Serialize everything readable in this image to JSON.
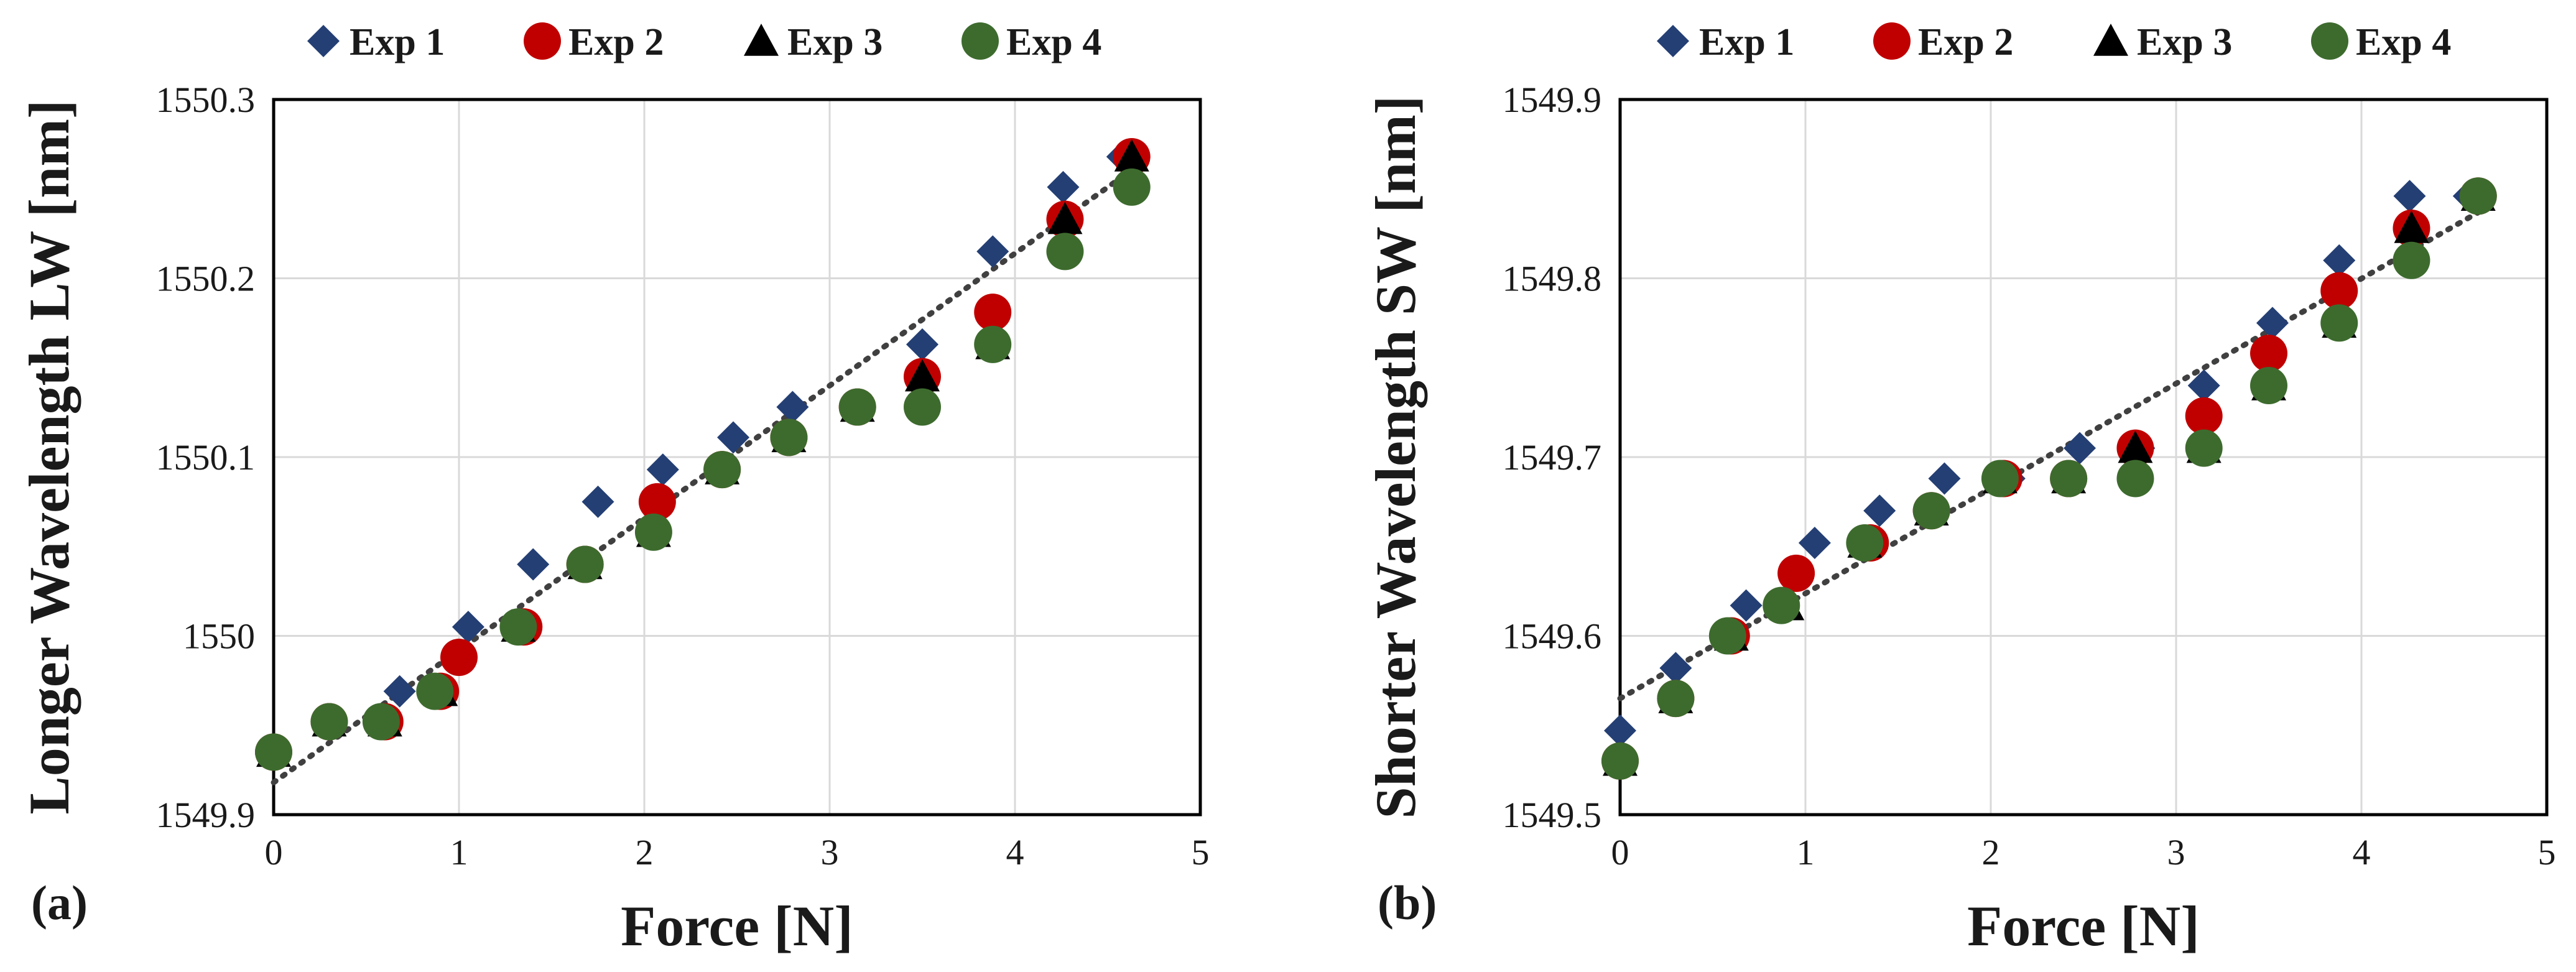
{
  "colors": {
    "exp1": "#243f74",
    "exp2": "#c00000",
    "exp3": "#000000",
    "exp4": "#3d6b2e",
    "trend": "#404040",
    "grid": "#d9d9d9"
  },
  "chart_data": [
    {
      "type": "scatter",
      "panel_label": "(a)",
      "xlabel": "Force [N]",
      "ylabel": "Longer Wavelength LW [nm]",
      "xlim": [
        0,
        5
      ],
      "ylim": [
        1549.9,
        1550.3
      ],
      "xticks": [
        0,
        1,
        2,
        3,
        4,
        5
      ],
      "xtick_labels": [
        "0",
        "1",
        "2",
        "3",
        "4",
        "5"
      ],
      "yticks": [
        1549.9,
        1550.0,
        1550.1,
        1550.2,
        1550.3
      ],
      "ytick_labels": [
        "1549.9",
        "1550",
        "1550.1",
        "1550.2",
        "1550.3"
      ],
      "legend": [
        "Exp 1",
        "Exp 2",
        "Exp 3",
        "Exp 4"
      ],
      "trendline": {
        "style": "dotted",
        "x": [
          0,
          4.65
        ],
        "y": [
          1549.918,
          1550.262
        ]
      },
      "series": [
        {
          "name": "Exp 1",
          "marker": "diamond",
          "x": [
            0,
            0.3,
            0.68,
            1.05,
            1.4,
            1.75,
            2.1,
            2.48,
            2.8,
            3.5,
            3.88,
            4.26,
            4.58
          ],
          "y": [
            1549.935,
            1549.952,
            1549.969,
            1550.005,
            1550.04,
            1550.075,
            1550.093,
            1550.111,
            1550.128,
            1550.163,
            1550.215,
            1550.251,
            1550.268
          ]
        },
        {
          "name": "Exp 2",
          "marker": "circle",
          "x": [
            0,
            0.3,
            0.6,
            0.9,
            1.0,
            1.35,
            1.68,
            2.07,
            2.42,
            2.78,
            3.15,
            3.5,
            3.88,
            4.27,
            4.63
          ],
          "y": [
            1549.935,
            1549.952,
            1549.952,
            1549.969,
            1549.988,
            1550.005,
            1550.04,
            1550.075,
            1550.093,
            1550.111,
            1550.128,
            1550.145,
            1550.181,
            1550.233,
            1550.268
          ]
        },
        {
          "name": "Exp 3",
          "marker": "triangle",
          "x": [
            0,
            0.3,
            0.6,
            0.9,
            1.32,
            1.68,
            2.05,
            2.42,
            2.78,
            3.15,
            3.5,
            3.88,
            4.27,
            4.63
          ],
          "y": [
            1549.935,
            1549.952,
            1549.952,
            1549.969,
            1550.005,
            1550.04,
            1550.058,
            1550.093,
            1550.111,
            1550.128,
            1550.145,
            1550.163,
            1550.233,
            1550.268
          ]
        },
        {
          "name": "Exp 4",
          "marker": "circle",
          "x": [
            0,
            0.3,
            0.58,
            0.87,
            1.32,
            1.68,
            2.05,
            2.42,
            2.78,
            3.15,
            3.5,
            3.88,
            4.27,
            4.63
          ],
          "y": [
            1549.935,
            1549.952,
            1549.952,
            1549.969,
            1550.005,
            1550.04,
            1550.058,
            1550.093,
            1550.111,
            1550.128,
            1550.128,
            1550.163,
            1550.215,
            1550.251
          ]
        }
      ]
    },
    {
      "type": "scatter",
      "panel_label": "(b)",
      "xlabel": "Force [N]",
      "ylabel": "Shorter Wavelength SW [nm]",
      "xlim": [
        0,
        5
      ],
      "ylim": [
        1549.5,
        1549.9
      ],
      "xticks": [
        0,
        1,
        2,
        3,
        4,
        5
      ],
      "xtick_labels": [
        "0",
        "1",
        "2",
        "3",
        "4",
        "5"
      ],
      "yticks": [
        1549.5,
        1549.6,
        1549.7,
        1549.8,
        1549.9
      ],
      "ytick_labels": [
        "1549.5",
        "1549.6",
        "1549.7",
        "1549.8",
        "1549.9"
      ],
      "legend": [
        "Exp 1",
        "Exp 2",
        "Exp 3",
        "Exp 4"
      ],
      "trendline": {
        "style": "dotted",
        "x": [
          0,
          4.65
        ],
        "y": [
          1549.565,
          1549.838
        ]
      },
      "series": [
        {
          "name": "Exp 1",
          "marker": "diamond",
          "x": [
            0,
            0.3,
            0.68,
            1.05,
            1.4,
            1.75,
            2.1,
            2.48,
            2.8,
            3.15,
            3.52,
            3.88,
            4.26,
            4.58
          ],
          "y": [
            1549.547,
            1549.582,
            1549.617,
            1549.652,
            1549.67,
            1549.688,
            1549.688,
            1549.705,
            1549.705,
            1549.74,
            1549.775,
            1549.81,
            1549.846,
            1549.846
          ]
        },
        {
          "name": "Exp 2",
          "marker": "circle",
          "x": [
            0,
            0.3,
            0.6,
            0.95,
            1.35,
            1.68,
            2.07,
            2.42,
            2.78,
            3.15,
            3.5,
            3.88,
            4.27,
            4.63
          ],
          "y": [
            1549.53,
            1549.565,
            1549.6,
            1549.635,
            1549.652,
            1549.67,
            1549.688,
            1549.688,
            1549.705,
            1549.723,
            1549.758,
            1549.793,
            1549.828,
            1549.846
          ]
        },
        {
          "name": "Exp 3",
          "marker": "triangle",
          "x": [
            0,
            0.3,
            0.6,
            0.9,
            1.32,
            1.68,
            2.05,
            2.42,
            2.78,
            3.15,
            3.5,
            3.88,
            4.27,
            4.63
          ],
          "y": [
            1549.53,
            1549.565,
            1549.6,
            1549.617,
            1549.652,
            1549.67,
            1549.688,
            1549.688,
            1549.705,
            1549.705,
            1549.74,
            1549.775,
            1549.828,
            1549.846
          ]
        },
        {
          "name": "Exp 4",
          "marker": "circle",
          "x": [
            0,
            0.3,
            0.58,
            0.87,
            1.32,
            1.68,
            2.05,
            2.42,
            2.78,
            3.15,
            3.5,
            3.88,
            4.27,
            4.63
          ],
          "y": [
            1549.53,
            1549.565,
            1549.6,
            1549.617,
            1549.652,
            1549.67,
            1549.688,
            1549.688,
            1549.688,
            1549.705,
            1549.74,
            1549.775,
            1549.81,
            1549.846
          ]
        }
      ]
    }
  ]
}
